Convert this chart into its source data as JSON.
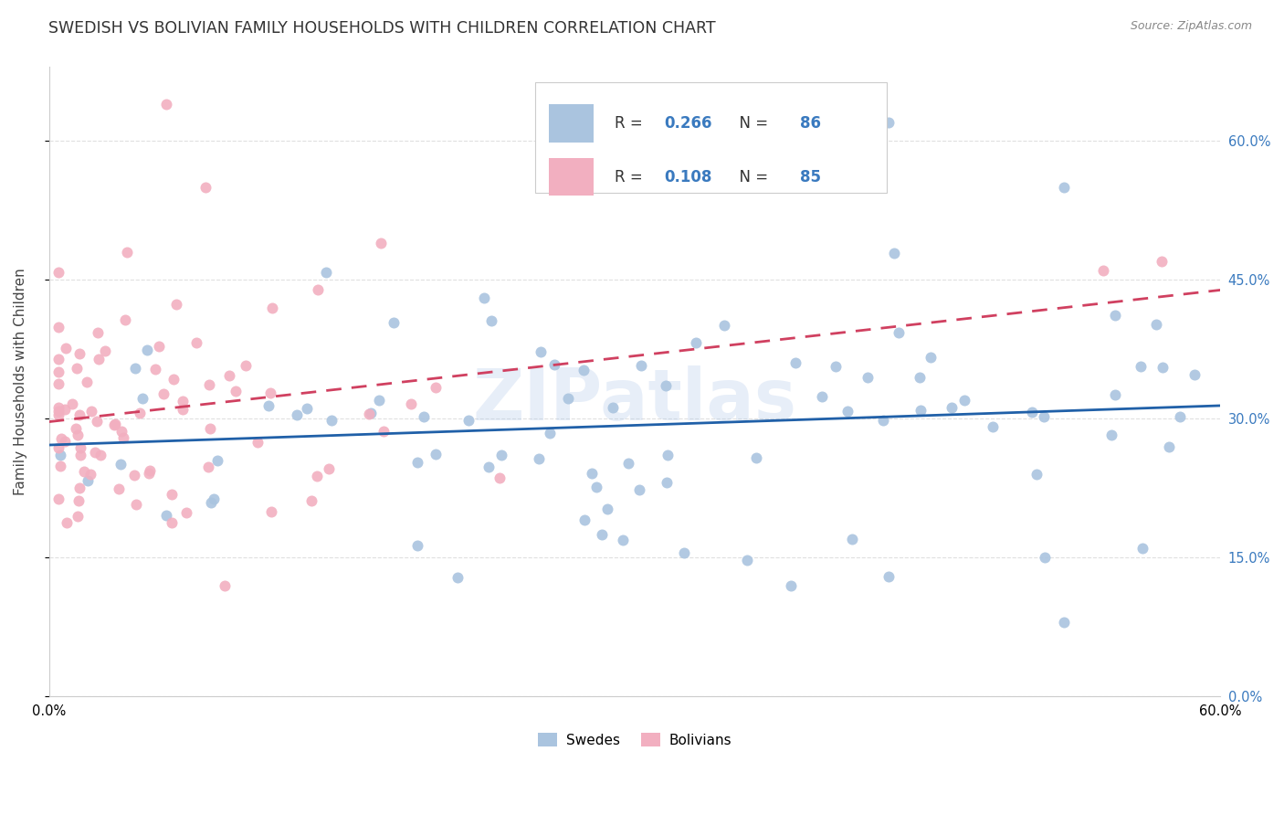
{
  "title": "SWEDISH VS BOLIVIAN FAMILY HOUSEHOLDS WITH CHILDREN CORRELATION CHART",
  "source": "Source: ZipAtlas.com",
  "ylabel": "Family Households with Children",
  "watermark": "ZIPatlas",
  "swede_color": "#aac4df",
  "bolivian_color": "#f2afc0",
  "swede_line_color": "#2060a8",
  "bolivian_line_color": "#d04060",
  "tick_color": "#3a7abf",
  "xlim": [
    0.0,
    0.6
  ],
  "ylim": [
    0.0,
    0.68
  ],
  "ytick_vals": [
    0.0,
    0.15,
    0.3,
    0.45,
    0.6
  ],
  "ytick_labels": [
    "0.0%",
    "15.0%",
    "30.0%",
    "45.0%",
    "60.0%"
  ],
  "xtick_vals": [
    0.0,
    0.1,
    0.2,
    0.3,
    0.4,
    0.5,
    0.6
  ],
  "xtick_labels": [
    "0.0%",
    "",
    "",
    "",
    "",
    "",
    "60.0%"
  ],
  "background_color": "#ffffff",
  "grid_color": "#e0e0e0",
  "swede_R": 0.266,
  "bolivian_R": 0.108,
  "swede_N": 86,
  "bolivian_N": 85,
  "legend_r1": "R = 0.266",
  "legend_n1": "N = 86",
  "legend_r2": "R = 0.108",
  "legend_n2": "N = 85",
  "legend_label1": "Swedes",
  "legend_label2": "Bolivians"
}
